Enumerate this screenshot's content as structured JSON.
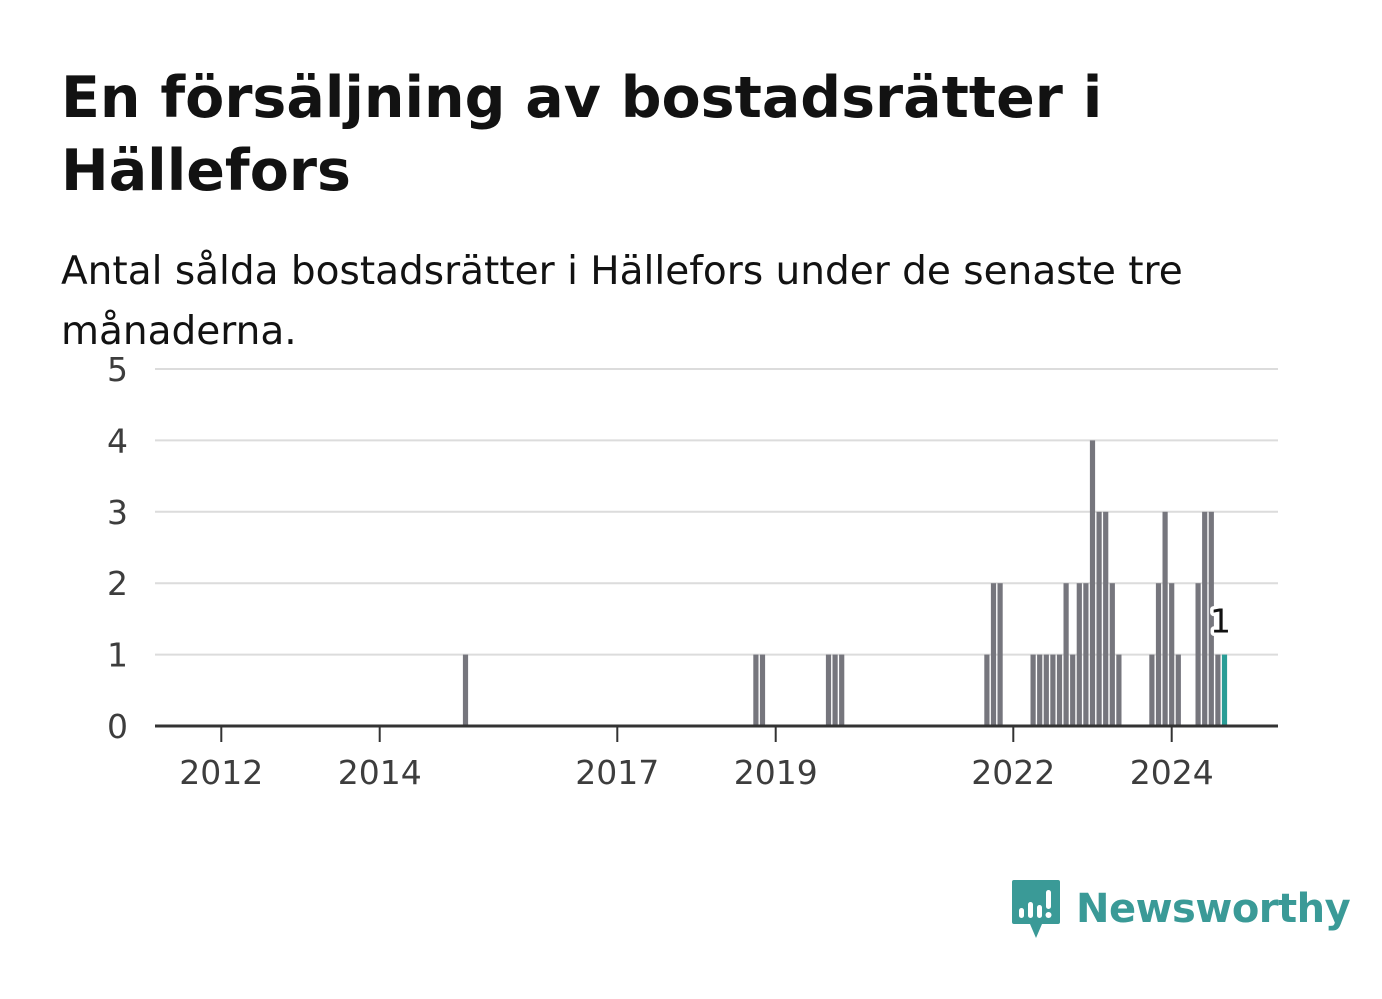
{
  "header": {
    "title": "En försäljning av bostadsrätter i Hällefors",
    "subtitle": "Antal sålda bostadsrätter i Hällefors under de senaste tre månaderna."
  },
  "brand": {
    "name": "Newsworthy",
    "icon": "newsworthy-logo-icon",
    "color": "#3a9a97"
  },
  "colors": {
    "bar": "#76767d",
    "highlight": "#2a9d96",
    "grid": "#dcdcdc",
    "axis": "#333333"
  },
  "chart_data": {
    "type": "bar",
    "title": "En försäljning av bostadsrätter i Hällefors",
    "subtitle": "Antal sålda bostadsrätter i Hällefors under de senaste tre månaderna.",
    "xlabel": "",
    "ylabel": "",
    "x_range": [
      "2011-07",
      "2025-12"
    ],
    "ylim": [
      0,
      5
    ],
    "yticks": [
      0,
      1,
      2,
      3,
      4,
      5
    ],
    "xticks": [
      {
        "label": "2012",
        "date": "2012-01"
      },
      {
        "label": "2014",
        "date": "2014-01"
      },
      {
        "label": "2017",
        "date": "2017-01"
      },
      {
        "label": "2019",
        "date": "2019-01"
      },
      {
        "label": "2022",
        "date": "2022-01"
      },
      {
        "label": "2024",
        "date": "2024-01"
      }
    ],
    "grid": true,
    "legend": "none",
    "highlight": {
      "date": "2024-09",
      "value": 1,
      "label": "1"
    },
    "bars": [
      {
        "date": "2015-02",
        "value": 1
      },
      {
        "date": "2018-10",
        "value": 1
      },
      {
        "date": "2018-11",
        "value": 1
      },
      {
        "date": "2019-09",
        "value": 1
      },
      {
        "date": "2019-10",
        "value": 1
      },
      {
        "date": "2019-11",
        "value": 1
      },
      {
        "date": "2021-09",
        "value": 1
      },
      {
        "date": "2021-10",
        "value": 2
      },
      {
        "date": "2021-11",
        "value": 2
      },
      {
        "date": "2022-04",
        "value": 1
      },
      {
        "date": "2022-05",
        "value": 1
      },
      {
        "date": "2022-06",
        "value": 1
      },
      {
        "date": "2022-07",
        "value": 1
      },
      {
        "date": "2022-08",
        "value": 1
      },
      {
        "date": "2022-09",
        "value": 2
      },
      {
        "date": "2022-10",
        "value": 1
      },
      {
        "date": "2022-11",
        "value": 2
      },
      {
        "date": "2022-12",
        "value": 2
      },
      {
        "date": "2023-01",
        "value": 4
      },
      {
        "date": "2023-02",
        "value": 3
      },
      {
        "date": "2023-03",
        "value": 3
      },
      {
        "date": "2023-04",
        "value": 2
      },
      {
        "date": "2023-05",
        "value": 1
      },
      {
        "date": "2023-10",
        "value": 1
      },
      {
        "date": "2023-11",
        "value": 2
      },
      {
        "date": "2023-12",
        "value": 3
      },
      {
        "date": "2024-01",
        "value": 2
      },
      {
        "date": "2024-02",
        "value": 1
      },
      {
        "date": "2024-05",
        "value": 2
      },
      {
        "date": "2024-06",
        "value": 3
      },
      {
        "date": "2024-07",
        "value": 3
      },
      {
        "date": "2024-08",
        "value": 1
      },
      {
        "date": "2024-09",
        "value": 1
      }
    ]
  }
}
